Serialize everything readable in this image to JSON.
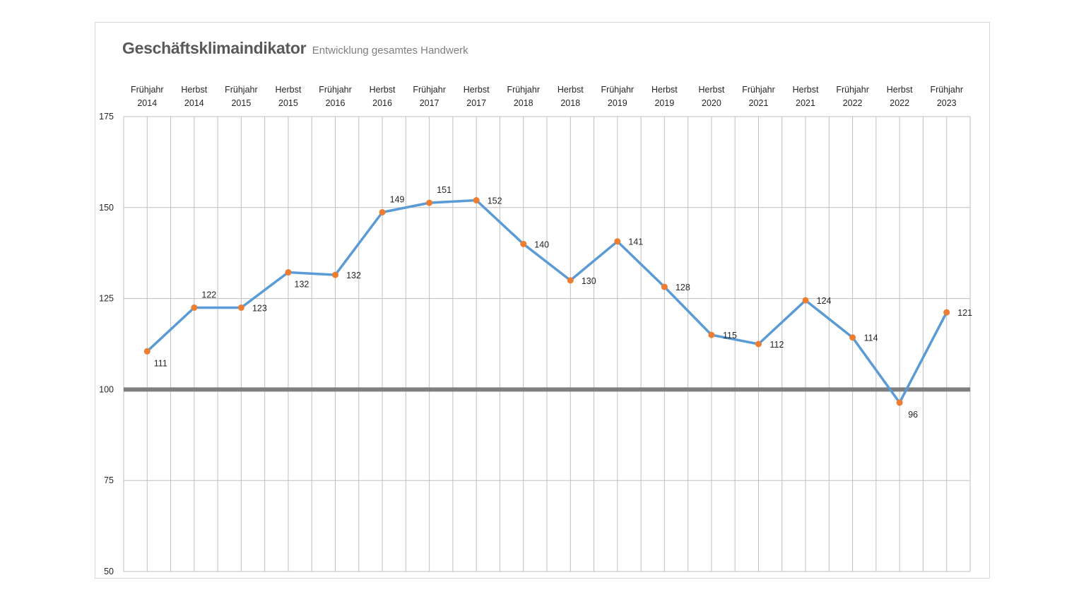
{
  "chart_data": {
    "type": "line",
    "title": "Geschäftsklimaindikator",
    "subtitle": "Entwicklung gesamtes Handwerk",
    "categories": [
      [
        "Frühjahr",
        "2014"
      ],
      [
        "Herbst",
        "2014"
      ],
      [
        "Frühjahr",
        "2015"
      ],
      [
        "Herbst",
        "2015"
      ],
      [
        "Frühjahr",
        "2016"
      ],
      [
        "Herbst",
        "2016"
      ],
      [
        "Frühjahr",
        "2017"
      ],
      [
        "Herbst",
        "2017"
      ],
      [
        "Frühjahr",
        "2018"
      ],
      [
        "Herbst",
        "2018"
      ],
      [
        "Frühjahr",
        "2019"
      ],
      [
        "Herbst",
        "2019"
      ],
      [
        "Herbst",
        "2020"
      ],
      [
        "Frühjahr",
        "2021"
      ],
      [
        "Herbst",
        "2021"
      ],
      [
        "Frühjahr",
        "2022"
      ],
      [
        "Herbst",
        "2022"
      ],
      [
        "Frühjahr",
        "2023"
      ]
    ],
    "series": [
      {
        "values": [
          111,
          122,
          123,
          132,
          132,
          149,
          151,
          152,
          140,
          130,
          141,
          128,
          115,
          112,
          124,
          114,
          96,
          121
        ],
        "plotted_values": [
          110.5,
          122.5,
          122.5,
          132.2,
          131.5,
          148.7,
          151.3,
          152.0,
          140.0,
          130.0,
          140.7,
          128.2,
          115.0,
          112.5,
          124.5,
          114.3,
          96.4,
          121.2
        ],
        "labels": [
          "111",
          "122",
          "123",
          "132",
          "132",
          "149",
          "151",
          "152",
          "140",
          "130",
          "141",
          "128",
          "115",
          "112",
          "124",
          "114",
          "96",
          "121"
        ],
        "line_color": "#5b9bd5",
        "marker_color": "#ed7d31"
      }
    ],
    "reference_line": {
      "value": 100,
      "color": "#7f7f7f"
    },
    "y_ticks": [
      50,
      75,
      100,
      125,
      150,
      175
    ],
    "ylim": [
      50,
      175
    ],
    "x_axis_position": "top",
    "grid": {
      "vertical": true,
      "horizontal": true,
      "color": "#bfbfbf"
    },
    "xlabel": "",
    "ylabel": ""
  }
}
